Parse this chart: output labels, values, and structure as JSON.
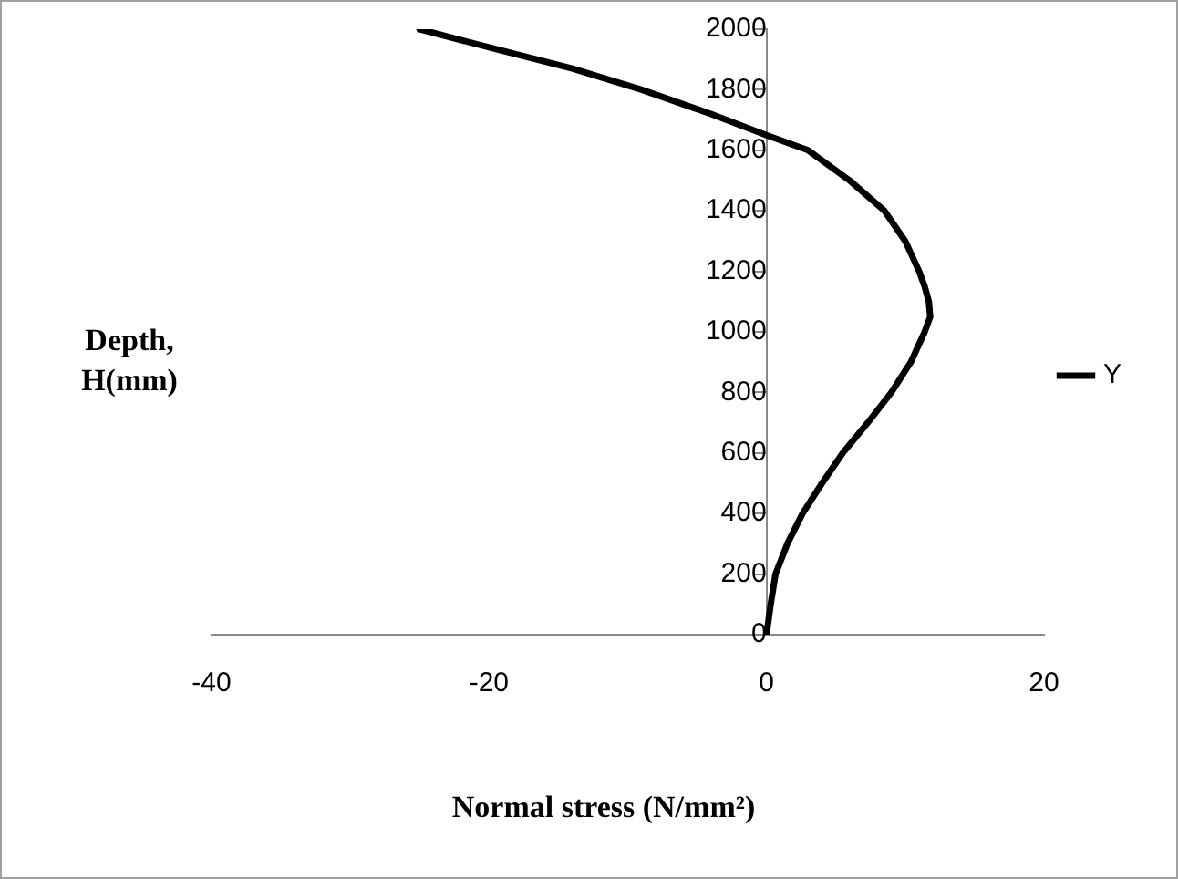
{
  "chart_data": {
    "type": "line",
    "xlabel": "Normal stress (N/mm²)",
    "ylabel": "Depth, H(mm)",
    "series": [
      {
        "name": "Y",
        "color": "#000000",
        "x": [
          0,
          0.3,
          0.65,
          1.5,
          2.6,
          4,
          5.5,
          7.3,
          9,
          10.4,
          11.4,
          11.8,
          11.7,
          11.4,
          11,
          10,
          8.5,
          6,
          3,
          0,
          -4,
          -9,
          -14,
          -20,
          -25
        ],
        "values": [
          0,
          100,
          200,
          300,
          400,
          500,
          600,
          700,
          800,
          900,
          1000,
          1050,
          1100,
          1150,
          1200,
          1300,
          1400,
          1500,
          1600,
          1650,
          1720,
          1800,
          1870,
          1940,
          2000
        ]
      }
    ],
    "xlim": [
      -40,
      20
    ],
    "xticks": [
      -40,
      -20,
      0,
      20
    ],
    "ylim": [
      0,
      2000
    ],
    "yticks": [
      0,
      200,
      400,
      600,
      800,
      1000,
      1200,
      1400,
      1600,
      1800,
      2000
    ],
    "grid": false,
    "legend": "right",
    "marker": "none",
    "line_style": "solid"
  }
}
